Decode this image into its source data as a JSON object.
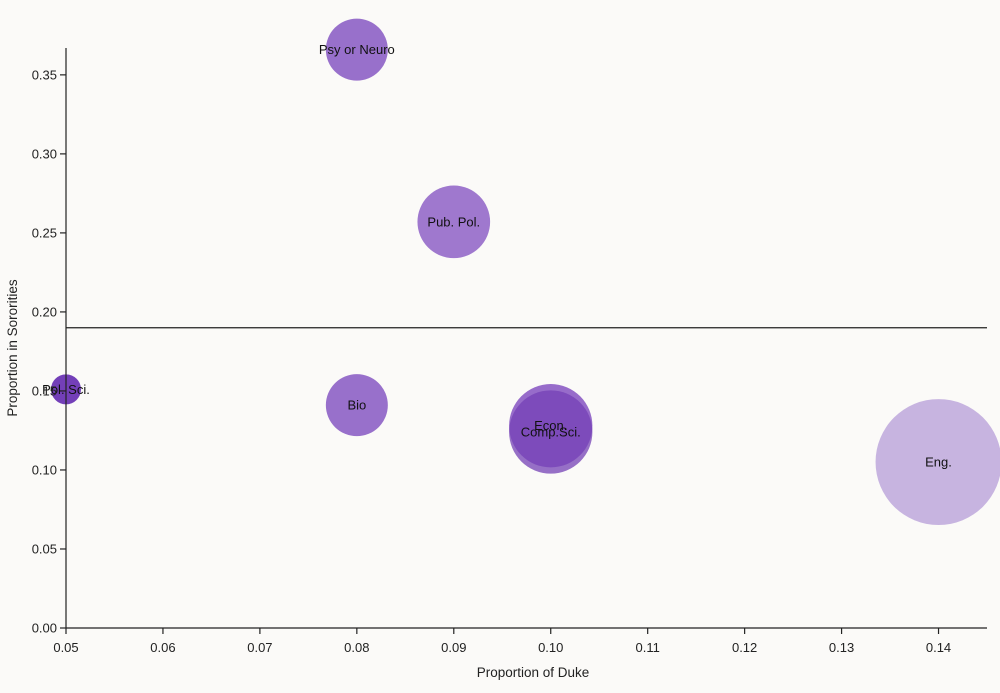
{
  "chart_data": {
    "type": "scatter",
    "title": "",
    "xlabel": "Proportion of Duke",
    "ylabel": "Proportion in Sororities",
    "xlim": [
      0.05,
      0.145
    ],
    "ylim": [
      0.0,
      0.367
    ],
    "x_ticks": [
      "0.05",
      "0.06",
      "0.07",
      "0.08",
      "0.09",
      "0.10",
      "0.11",
      "0.12",
      "0.13",
      "0.14"
    ],
    "y_ticks": [
      "0.00",
      "0.05",
      "0.10",
      "0.15",
      "0.20",
      "0.25",
      "0.30",
      "0.35"
    ],
    "reference_line_y": 0.19,
    "grid": false,
    "points": [
      {
        "label": "Psy or Neuro",
        "x": 0.08,
        "y": 0.366,
        "size": 0.08,
        "color": "#8a5cc4",
        "opacity": 0.88
      },
      {
        "label": "Pub. Pol.",
        "x": 0.09,
        "y": 0.257,
        "size": 0.09,
        "color": "#8a5cc4",
        "opacity": 0.82
      },
      {
        "label": "Pol. Sci.",
        "x": 0.05,
        "y": 0.151,
        "size": 0.05,
        "color": "#6b35b4",
        "opacity": 0.95
      },
      {
        "label": "Bio",
        "x": 0.08,
        "y": 0.141,
        "size": 0.08,
        "color": "#8a5cc4",
        "opacity": 0.88
      },
      {
        "label": "Econ.",
        "x": 0.1,
        "y": 0.128,
        "size": 0.1,
        "color": "#8552c2",
        "opacity": 0.85
      },
      {
        "label": "Comp.Sci.",
        "x": 0.1,
        "y": 0.124,
        "size": 0.1,
        "color": "#7440b6",
        "opacity": 0.75
      },
      {
        "label": "Eng.",
        "x": 0.14,
        "y": 0.105,
        "size": 0.14,
        "color": "#c7b4e0",
        "opacity": 1.0
      }
    ]
  }
}
